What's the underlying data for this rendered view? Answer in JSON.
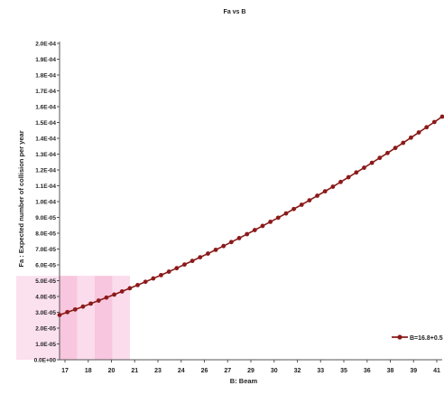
{
  "chart_data": {
    "type": "line",
    "title": "Fa vs B",
    "xlabel": "B: Beam",
    "ylabel": "Fa : Expected number of collision per year",
    "x_tick_labels": [
      "17",
      "18",
      "20",
      "21",
      "23",
      "24",
      "26",
      "27",
      "29",
      "30",
      "32",
      "33",
      "35",
      "36",
      "38",
      "39",
      "41"
    ],
    "y_tick_labels": [
      "0.0E+00",
      "1.0E-05",
      "2.0E-05",
      "3.0E-05",
      "4.0E-05",
      "5.0E-05",
      "6.0E-05",
      "7.0E-05",
      "8.0E-05",
      "9.0E-05",
      "1.0E-04",
      "1.1E-04",
      "1.2E-04",
      "1.3E-04",
      "1.4E-04",
      "1.5E-04",
      "1.6E-04",
      "1.7E-04",
      "1.8E-04",
      "1.9E-04",
      "2.0E-04"
    ],
    "xlim": [
      17,
      41.5
    ],
    "ylim": [
      0,
      0.0002
    ],
    "highlight_region": {
      "x_range": [
        17,
        21.5
      ],
      "y_range": [
        0,
        5.3e-05
      ]
    },
    "legend": {
      "position": "right",
      "label": "B=16.8+0.5"
    },
    "series": [
      {
        "name": "B=16.8+0.5",
        "color": "#8b1a1a",
        "x": [
          17,
          17.5,
          18,
          18.5,
          19,
          19.5,
          20,
          20.5,
          21,
          21.5,
          22,
          22.5,
          23,
          23.5,
          24,
          24.5,
          25,
          25.5,
          26,
          26.5,
          27,
          27.5,
          28,
          28.5,
          29,
          29.5,
          30,
          30.5,
          31,
          31.5,
          32,
          32.5,
          33,
          33.5,
          34,
          34.5,
          35,
          35.5,
          36,
          36.5,
          37,
          37.5,
          38,
          38.5,
          39,
          39.5,
          40,
          40.5,
          41,
          41.5
        ],
        "y": [
          2.83e-05,
          3.01e-05,
          3.18e-05,
          3.36e-05,
          3.55e-05,
          3.74e-05,
          3.93e-05,
          4.12e-05,
          4.32e-05,
          4.52e-05,
          4.72e-05,
          4.93e-05,
          5.14e-05,
          5.35e-05,
          5.57e-05,
          5.79e-05,
          6.02e-05,
          6.25e-05,
          6.48e-05,
          6.71e-05,
          6.95e-05,
          7.19e-05,
          7.44e-05,
          7.69e-05,
          7.94e-05,
          8.2e-05,
          8.46e-05,
          8.72e-05,
          8.98e-05,
          9.25e-05,
          9.53e-05,
          9.8e-05,
          0.0001008,
          0.0001037,
          0.0001065,
          0.0001094,
          0.0001124,
          0.0001154,
          0.0001184,
          0.0001214,
          0.0001245,
          0.0001276,
          0.0001307,
          0.0001339,
          0.0001371,
          0.0001404,
          0.0001437,
          0.000147,
          0.0001503,
          0.0001537
        ]
      }
    ]
  }
}
